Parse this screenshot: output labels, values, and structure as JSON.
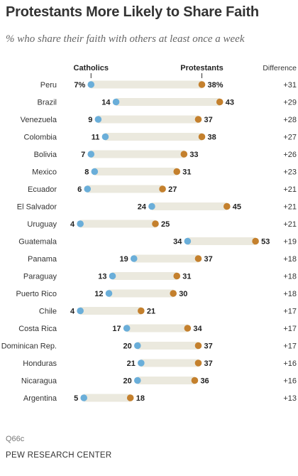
{
  "title": "Protestants More Likely to Share Faith",
  "subtitle": "% who share their faith with others at least once a week",
  "note": "Q66c",
  "source": "PEW RESEARCH CENTER",
  "colors": {
    "catholics": "#6aaed9",
    "protestants": "#c4802d",
    "bar": "#ebe9de"
  },
  "chart_data": {
    "type": "dot",
    "title": "Protestants More Likely to Share Faith",
    "subtitle": "% who share their faith with others at least once a week",
    "categories": [
      "Peru",
      "Brazil",
      "Venezuela",
      "Colombia",
      "Bolivia",
      "Mexico",
      "Ecuador",
      "El Salvador",
      "Uruguay",
      "Guatemala",
      "Panama",
      "Paraguay",
      "Puerto Rico",
      "Chile",
      "Costa Rica",
      "Dominican Rep.",
      "Honduras",
      "Nicaragua",
      "Argentina"
    ],
    "series": [
      {
        "name": "Catholics",
        "values": [
          7,
          14,
          9,
          11,
          7,
          8,
          6,
          24,
          4,
          34,
          19,
          13,
          12,
          4,
          17,
          20,
          21,
          20,
          5
        ]
      },
      {
        "name": "Protestants",
        "values": [
          38,
          43,
          37,
          38,
          33,
          31,
          27,
          45,
          25,
          53,
          37,
          31,
          30,
          21,
          34,
          37,
          37,
          36,
          18
        ]
      }
    ],
    "difference_label": "Difference",
    "difference": [
      "+31",
      "+29",
      "+28",
      "+27",
      "+26",
      "+23",
      "+21",
      "+21",
      "+21",
      "+19",
      "+18",
      "+18",
      "+18",
      "+17",
      "+17",
      "+17",
      "+16",
      "+16",
      "+13"
    ],
    "first_row_value_suffix": "%",
    "xlim": [
      0,
      60
    ]
  }
}
